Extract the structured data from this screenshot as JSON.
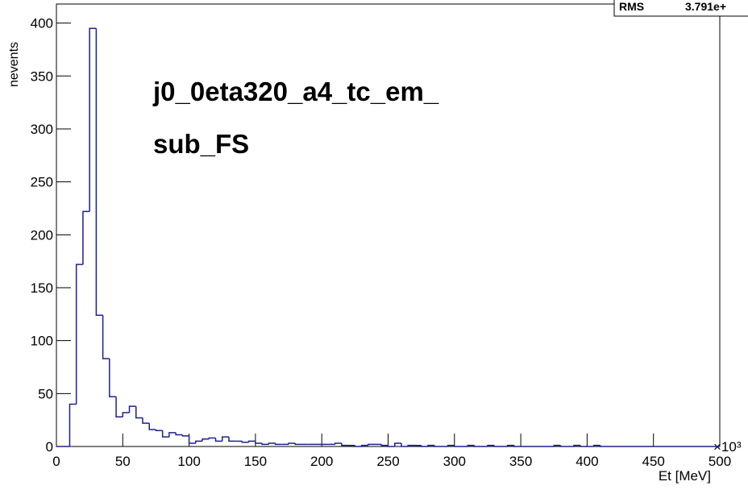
{
  "chart_data": {
    "type": "histogram",
    "annotation": [
      "j0_0eta320_a4_tc_em_",
      "sub_FS"
    ],
    "stats": {
      "label": "RMS",
      "value": "3.791e+"
    },
    "xlabel": "Et [MeV]",
    "ylabel": "nevents",
    "x_exponent": "×10³",
    "color": "#1f1f8f",
    "bins": [
      0,
      5,
      10,
      15,
      20,
      25,
      30,
      35,
      40,
      45,
      50,
      55,
      60,
      65,
      70,
      75,
      80,
      85,
      90,
      95,
      100,
      105,
      110,
      115,
      120,
      125,
      130,
      135,
      140,
      145,
      150,
      155,
      160,
      165,
      170,
      175,
      180,
      185,
      190,
      195,
      200,
      205,
      210,
      215,
      220,
      225,
      230,
      235,
      240,
      245,
      250,
      255,
      260,
      265,
      270,
      275,
      280,
      285,
      290,
      295,
      300,
      305,
      310,
      315,
      320,
      325,
      330,
      335,
      340,
      345,
      350,
      355,
      360,
      365,
      370,
      375,
      380,
      385,
      390,
      395,
      400,
      405,
      410,
      415,
      420,
      425,
      430,
      435,
      440,
      445,
      450,
      455,
      460,
      465,
      470,
      475,
      480,
      485,
      490,
      495,
      500
    ],
    "counts": [
      0,
      0,
      40,
      172,
      222,
      395,
      124,
      83,
      47,
      28,
      32,
      38,
      27,
      22,
      16,
      15,
      9,
      13,
      11,
      10,
      3,
      5,
      7,
      8,
      5,
      9,
      5,
      5,
      4,
      5,
      3,
      2,
      3,
      2,
      2,
      3,
      2,
      2,
      2,
      2,
      2,
      2,
      3,
      1,
      1,
      0,
      1,
      2,
      2,
      1,
      0,
      3,
      0,
      1,
      1,
      0,
      1,
      0,
      0,
      1,
      0,
      0,
      1,
      0,
      0,
      1,
      0,
      0,
      1,
      0,
      0,
      0,
      0,
      0,
      0,
      1,
      0,
      0,
      1,
      0,
      0,
      1,
      0,
      0,
      0,
      0,
      0,
      0,
      0,
      0,
      0,
      0,
      0,
      0,
      0,
      0,
      0,
      0,
      0,
      0
    ],
    "xlim": [
      0,
      500
    ],
    "ylim": [
      0,
      418
    ],
    "xticks": [
      0,
      50,
      100,
      150,
      200,
      250,
      300,
      350,
      400,
      450,
      500
    ],
    "yticks": [
      0,
      50,
      100,
      150,
      200,
      250,
      300,
      350,
      400
    ]
  }
}
